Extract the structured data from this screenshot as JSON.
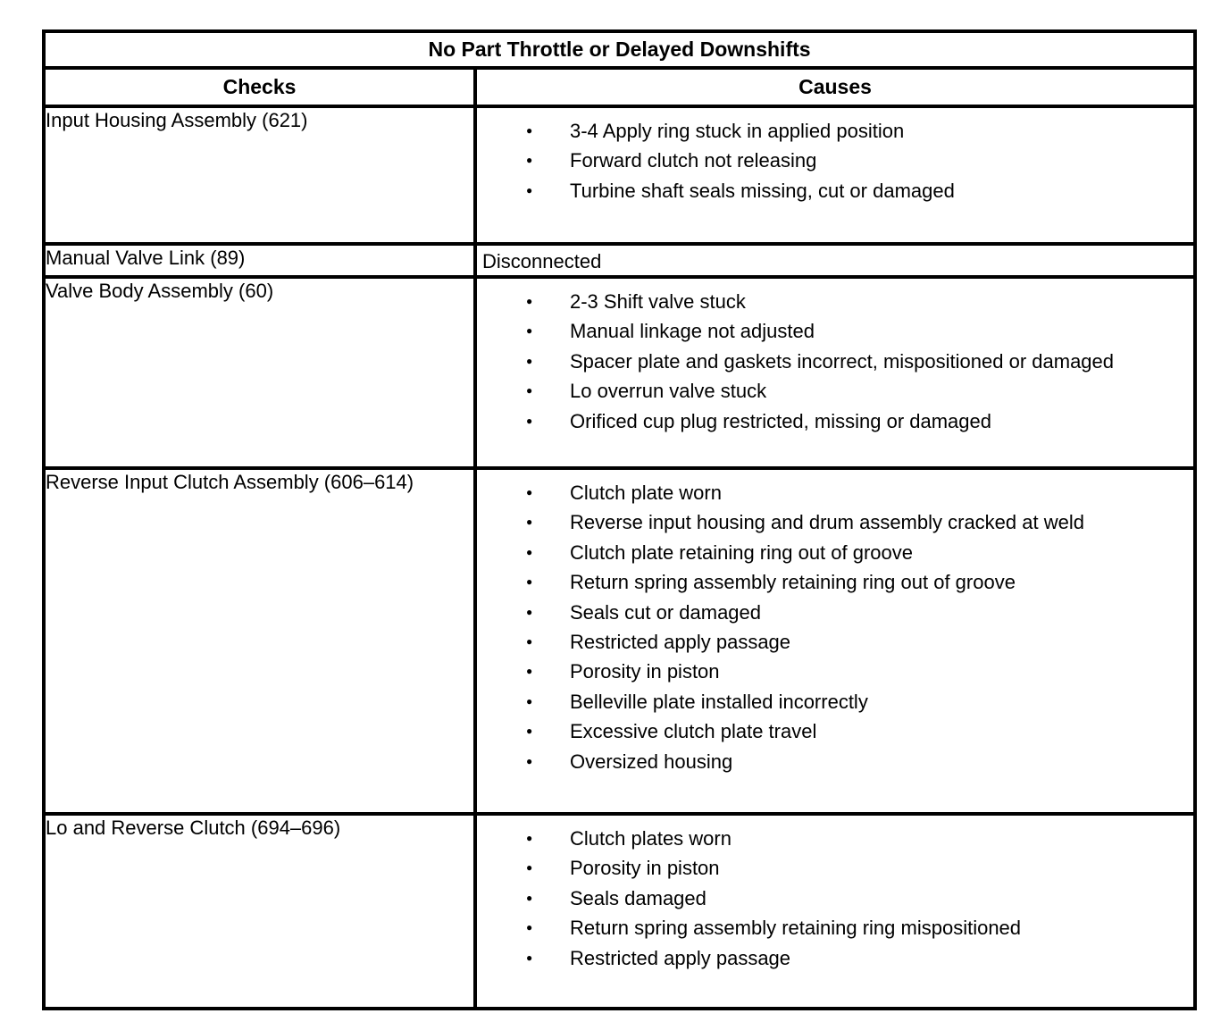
{
  "document": {
    "title": "No Part Throttle or Delayed Downshifts",
    "columns": [
      "Checks",
      "Causes"
    ],
    "bullet_icon": "●",
    "colors": {
      "border": "#000000",
      "text": "#000000",
      "background": "#ffffff"
    },
    "rows": [
      {
        "check": "Input Housing Assembly (621)",
        "causes_format": "bulleted",
        "causes": [
          "3-4 Apply ring stuck in applied position",
          "Forward clutch not releasing",
          "Turbine shaft seals missing, cut or damaged"
        ]
      },
      {
        "check": "Manual Valve Link (89)",
        "causes_format": "plain",
        "causes": [
          "Disconnected"
        ]
      },
      {
        "check": "Valve Body Assembly (60)",
        "causes_format": "bulleted",
        "causes": [
          "2-3 Shift valve stuck",
          "Manual linkage not adjusted",
          "Spacer plate and gaskets incorrect, mispositioned or damaged",
          "Lo overrun valve stuck",
          "Orificed cup plug restricted, missing or damaged"
        ]
      },
      {
        "check": "Reverse Input Clutch Assembly (606–614)",
        "causes_format": "bulleted",
        "causes": [
          "Clutch plate worn",
          "Reverse input housing and drum assembly cracked at weld",
          "Clutch plate retaining ring out of groove",
          "Return spring assembly retaining ring out of groove",
          "Seals cut or damaged",
          "Restricted apply passage",
          "Porosity in piston",
          "Belleville plate installed incorrectly",
          "Excessive clutch plate travel",
          "Oversized housing"
        ]
      },
      {
        "check": "Lo and Reverse Clutch (694–696)",
        "causes_format": "bulleted",
        "causes": [
          "Clutch plates worn",
          "Porosity in piston",
          "Seals damaged",
          "Return spring assembly retaining ring mispositioned",
          "Restricted apply passage"
        ]
      }
    ]
  }
}
